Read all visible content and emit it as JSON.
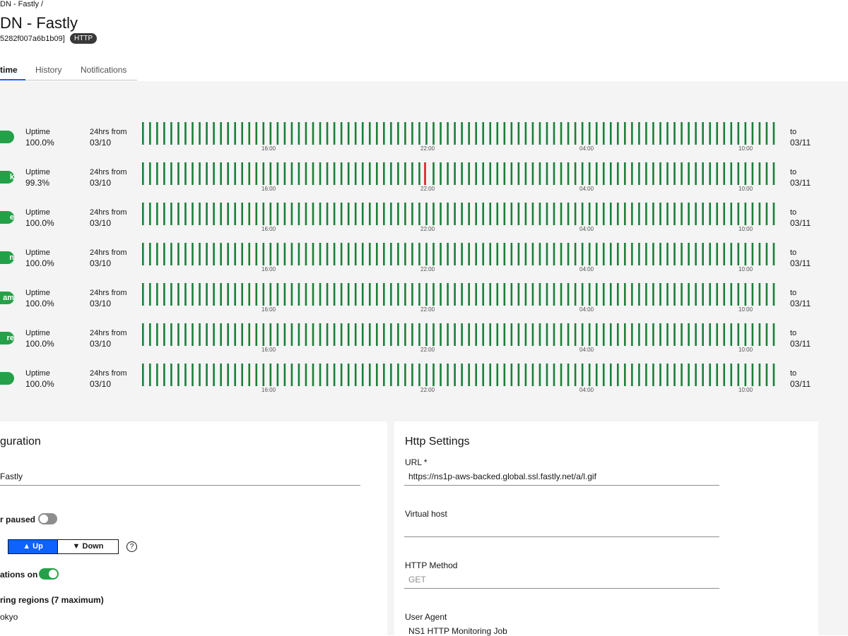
{
  "header": {
    "breadcrumb": "DN - Fastly /",
    "title": "DN - Fastly",
    "job_id": "5282f007a6b1b09]",
    "badge": "HTTP"
  },
  "tabs": [
    "time",
    "History",
    "Notifications"
  ],
  "uptime_rows": [
    {
      "uptime_label": "Uptime",
      "uptime": "100.0%",
      "from_label": "24hrs from",
      "from": "03/10",
      "to_label": "to",
      "to": "03/11",
      "ticks": [
        "16:00",
        "22:00",
        "04:00",
        "10:00"
      ]
    },
    {
      "region": "k",
      "uptime_label": "Uptime",
      "uptime": "99.3%",
      "from_label": "24hrs from",
      "from": "03/10",
      "to_label": "to",
      "to": "03/11",
      "ticks": [
        "16:00",
        "22:00",
        "04:00",
        "10:00"
      ]
    },
    {
      "region": "e",
      "uptime_label": "Uptime",
      "uptime": "100.0%",
      "from_label": "24hrs from",
      "from": "03/10",
      "to_label": "to",
      "to": "03/11",
      "ticks": [
        "16:00",
        "22:00",
        "04:00",
        "10:00"
      ]
    },
    {
      "region": "n",
      "uptime_label": "Uptime",
      "uptime": "100.0%",
      "from_label": "24hrs from",
      "from": "03/10",
      "to_label": "to",
      "to": "03/11",
      "ticks": [
        "16:00",
        "22:00",
        "04:00",
        "10:00"
      ]
    },
    {
      "region": "am",
      "uptime_label": "Uptime",
      "uptime": "100.0%",
      "from_label": "24hrs from",
      "from": "03/10",
      "to_label": "to",
      "to": "03/11",
      "ticks": [
        "16:00",
        "22:00",
        "04:00",
        "10:00"
      ]
    },
    {
      "region": "re",
      "uptime_label": "Uptime",
      "uptime": "100.0%",
      "from_label": "24hrs from",
      "from": "03/10",
      "to_label": "to",
      "to": "03/11",
      "ticks": [
        "16:00",
        "22:00",
        "04:00",
        "10:00"
      ]
    },
    {
      "uptime_label": "Uptime",
      "uptime": "100.0%",
      "from_label": "24hrs from",
      "from": "03/10",
      "to_label": "to",
      "to": "03/11",
      "ticks": [
        "16:00",
        "22:00",
        "04:00",
        "10:00"
      ]
    }
  ],
  "configuration": {
    "title": "guration",
    "name": "Fastly",
    "paused_label": "r paused",
    "status_up": "Up",
    "status_down": "Down",
    "help": "?",
    "notifications_label": "ations on",
    "regions_label": "ring regions (7 maximum)",
    "region": "okyo"
  },
  "http_settings": {
    "title": "Http Settings",
    "url_label": "URL *",
    "url": "https://ns1p-aws-backed.global.ssl.fastly.net/a/l.gif",
    "vhost_label": "Virtual host",
    "method_label": "HTTP Method",
    "method": "GET",
    "agent_label": "User Agent",
    "agent": "NS1 HTTP Monitoring Job"
  }
}
